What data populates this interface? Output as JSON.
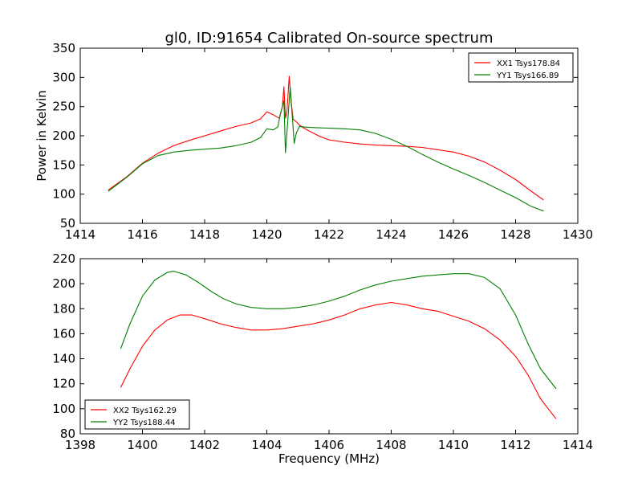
{
  "figure": {
    "title": "gl0, ID:91654 Calibrated On-source spectrum"
  },
  "colors": {
    "xx": "#ff0000",
    "yy": "#008000",
    "axis": "#000000"
  },
  "chart_data": [
    {
      "type": "line",
      "title": "gl0, ID:91654 Calibrated On-source spectrum",
      "xlabel": "",
      "ylabel": "Power in Kelvin",
      "xlim": [
        1414,
        1430
      ],
      "ylim": [
        50,
        350
      ],
      "xticks": [
        "1414",
        "1416",
        "1418",
        "1420",
        "1422",
        "1424",
        "1426",
        "1428",
        "1430"
      ],
      "yticks": [
        "50",
        "100",
        "150",
        "200",
        "250",
        "300",
        "350"
      ],
      "legend_position": "top-right",
      "series": [
        {
          "name": "XX1 Tsys178.84",
          "color": "#ff0000",
          "x": [
            1414.9,
            1415.5,
            1416.0,
            1416.5,
            1417.0,
            1417.5,
            1418.0,
            1418.5,
            1419.0,
            1419.5,
            1419.8,
            1420.0,
            1420.2,
            1420.4,
            1420.5,
            1420.55,
            1420.6,
            1420.65,
            1420.72,
            1420.78,
            1420.85,
            1420.95,
            1421.05,
            1421.2,
            1421.4,
            1421.7,
            1422.0,
            1422.5,
            1423.0,
            1423.5,
            1424.0,
            1424.5,
            1425.0,
            1425.5,
            1426.0,
            1426.5,
            1427.0,
            1427.5,
            1428.0,
            1428.5,
            1428.9
          ],
          "y": [
            107,
            130,
            153,
            170,
            183,
            192,
            200,
            208,
            216,
            222,
            229,
            241,
            236,
            230,
            250,
            284,
            230,
            244,
            302,
            258,
            228,
            224,
            218,
            213,
            207,
            199,
            193,
            189,
            186,
            184,
            183,
            182,
            180,
            176,
            172,
            165,
            155,
            141,
            125,
            105,
            90
          ]
        },
        {
          "name": "YY1 Tsys166.89",
          "color": "#008000",
          "x": [
            1414.9,
            1415.5,
            1416.0,
            1416.5,
            1417.0,
            1417.5,
            1418.0,
            1418.5,
            1419.0,
            1419.5,
            1419.8,
            1420.0,
            1420.2,
            1420.35,
            1420.45,
            1420.55,
            1420.6,
            1420.65,
            1420.75,
            1420.82,
            1420.88,
            1420.95,
            1421.05,
            1421.2,
            1421.5,
            1422.0,
            1422.5,
            1423.0,
            1423.5,
            1424.0,
            1424.5,
            1425.0,
            1425.5,
            1426.0,
            1426.5,
            1427.0,
            1427.5,
            1428.0,
            1428.5,
            1428.9
          ],
          "y": [
            105,
            129,
            152,
            166,
            172,
            175,
            177,
            179,
            183,
            189,
            197,
            212,
            210,
            215,
            240,
            260,
            171,
            208,
            284,
            232,
            187,
            205,
            216,
            215,
            214,
            213,
            212,
            210,
            204,
            194,
            182,
            168,
            155,
            143,
            132,
            120,
            107,
            94,
            79,
            71
          ]
        }
      ]
    },
    {
      "type": "line",
      "title": "",
      "xlabel": "Frequency (MHz)",
      "ylabel": "",
      "xlim": [
        1398,
        1414
      ],
      "ylim": [
        80,
        220
      ],
      "xticks": [
        "1398",
        "1400",
        "1402",
        "1404",
        "1406",
        "1408",
        "1410",
        "1412",
        "1414"
      ],
      "yticks": [
        "80",
        "100",
        "120",
        "140",
        "160",
        "180",
        "200",
        "220"
      ],
      "legend_position": "bottom-left",
      "series": [
        {
          "name": "XX2 Tsys162.29",
          "color": "#ff0000",
          "x": [
            1399.3,
            1399.6,
            1400.0,
            1400.4,
            1400.8,
            1401.2,
            1401.6,
            1402.0,
            1402.5,
            1403.0,
            1403.5,
            1404.0,
            1404.5,
            1405.0,
            1405.5,
            1406.0,
            1406.5,
            1407.0,
            1407.5,
            1408.0,
            1408.5,
            1409.0,
            1409.5,
            1410.0,
            1410.5,
            1411.0,
            1411.5,
            1412.0,
            1412.4,
            1412.8,
            1413.3
          ],
          "y": [
            117,
            132,
            150,
            163,
            171,
            175,
            175,
            172,
            168,
            165,
            163,
            163,
            164,
            166,
            168,
            171,
            175,
            180,
            183,
            185,
            183,
            180,
            178,
            174,
            170,
            164,
            155,
            142,
            127,
            108,
            92
          ]
        },
        {
          "name": "YY2 Tsys188.44",
          "color": "#008000",
          "x": [
            1399.3,
            1399.6,
            1400.0,
            1400.4,
            1400.8,
            1401.0,
            1401.4,
            1401.8,
            1402.2,
            1402.6,
            1403.0,
            1403.5,
            1404.0,
            1404.5,
            1405.0,
            1405.5,
            1406.0,
            1406.5,
            1407.0,
            1407.5,
            1408.0,
            1408.5,
            1409.0,
            1409.5,
            1410.0,
            1410.5,
            1411.0,
            1411.5,
            1412.0,
            1412.4,
            1412.8,
            1413.3
          ],
          "y": [
            148,
            168,
            190,
            203,
            209,
            210,
            207,
            201,
            194,
            188,
            184,
            181,
            180,
            180,
            181,
            183,
            186,
            190,
            195,
            199,
            202,
            204,
            206,
            207,
            208,
            208,
            205,
            196,
            175,
            152,
            132,
            116
          ]
        }
      ]
    }
  ]
}
